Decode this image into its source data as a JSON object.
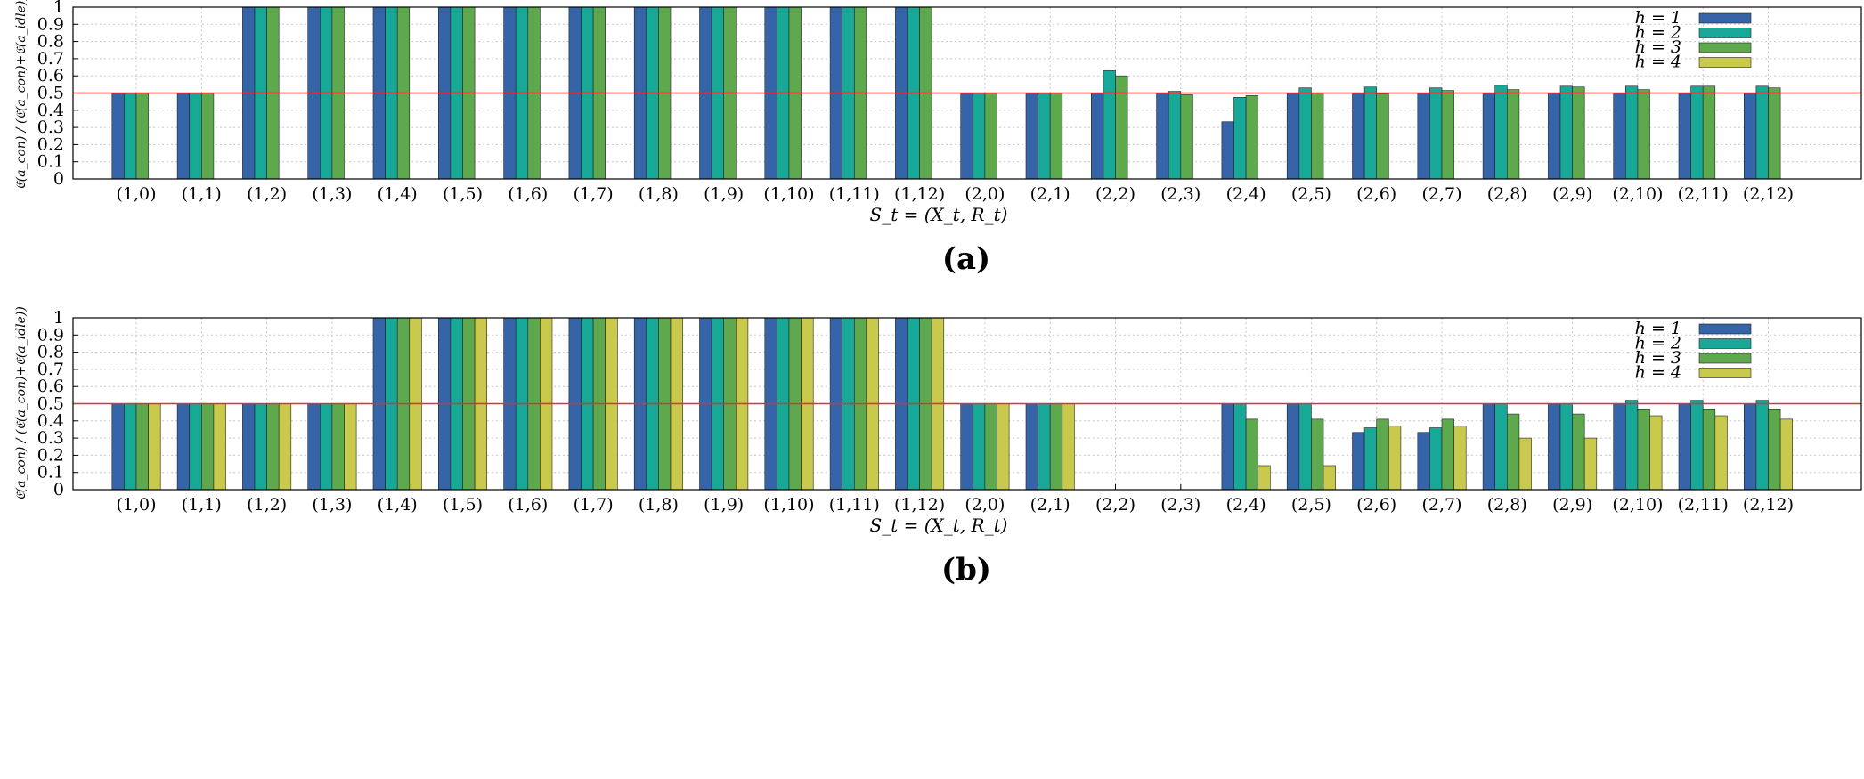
{
  "colors": {
    "h1": "#3565a8",
    "h2": "#18a898",
    "h3": "#5ea84e",
    "h4": "#c9c94e",
    "reference_line": "#e03030"
  },
  "chart_data": [
    {
      "type": "bar",
      "caption": "(a)",
      "xlabel": "S_t = (X_t, R_t)",
      "ylabel": "𝔈(a_con) / (𝔈(a_con)+𝔈(a_idle))",
      "ylim": [
        0,
        1
      ],
      "yticks": [
        "0",
        "0.1",
        "0.2",
        "0.3",
        "0.4",
        "0.5",
        "0.6",
        "0.7",
        "0.8",
        "0.9",
        "1"
      ],
      "reference_line": 0.5,
      "grid": true,
      "legend_position": "top-right",
      "categories": [
        "(1,0)",
        "(1,1)",
        "(1,2)",
        "(1,3)",
        "(1,4)",
        "(1,5)",
        "(1,6)",
        "(1,7)",
        "(1,8)",
        "(1,9)",
        "(1,10)",
        "(1,11)",
        "(1,12)",
        "(2,0)",
        "(2,1)",
        "(2,2)",
        "(2,3)",
        "(2,4)",
        "(2,5)",
        "(2,6)",
        "(2,7)",
        "(2,8)",
        "(2,9)",
        "(2,10)",
        "(2,11)",
        "(2,12)"
      ],
      "series": [
        {
          "name": "h = 1",
          "values": [
            0.5,
            0.5,
            1,
            1,
            1,
            1,
            1,
            1,
            1,
            1,
            1,
            1,
            1,
            0.5,
            0.5,
            0.5,
            0.5,
            0.333,
            0.5,
            0.5,
            0.5,
            0.5,
            0.5,
            0.5,
            0.5,
            0.5
          ]
        },
        {
          "name": "h = 2",
          "values": [
            0.5,
            0.5,
            1,
            1,
            1,
            1,
            1,
            1,
            1,
            1,
            1,
            1,
            1,
            0.5,
            0.5,
            0.63,
            0.51,
            0.475,
            0.53,
            0.535,
            0.53,
            0.545,
            0.54,
            0.54,
            0.54,
            0.54
          ]
        },
        {
          "name": "h = 3",
          "values": [
            0.5,
            0.5,
            1,
            1,
            1,
            1,
            1,
            1,
            1,
            1,
            1,
            1,
            1,
            0.5,
            0.5,
            0.6,
            0.49,
            0.485,
            0.5,
            0.495,
            0.515,
            0.52,
            0.535,
            0.52,
            0.54,
            0.53
          ]
        },
        {
          "name": "h = 4",
          "values": [
            0,
            0,
            0,
            0,
            0,
            0,
            0,
            0,
            0,
            0,
            0,
            0,
            0,
            0,
            0,
            0,
            0,
            0,
            0,
            0,
            0,
            0,
            0,
            0,
            0,
            0
          ]
        }
      ]
    },
    {
      "type": "bar",
      "caption": "(b)",
      "xlabel": "S_t = (X_t, R_t)",
      "ylabel": "𝔈(a_con) / (𝔈(a_con)+𝔈(a_idle))",
      "ylim": [
        0,
        1
      ],
      "yticks": [
        "0",
        "0.1",
        "0.2",
        "0.3",
        "0.4",
        "0.5",
        "0.6",
        "0.7",
        "0.8",
        "0.9",
        "1"
      ],
      "reference_line": 0.5,
      "grid": true,
      "legend_position": "top-right",
      "categories": [
        "(1,0)",
        "(1,1)",
        "(1,2)",
        "(1,3)",
        "(1,4)",
        "(1,5)",
        "(1,6)",
        "(1,7)",
        "(1,8)",
        "(1,9)",
        "(1,10)",
        "(1,11)",
        "(1,12)",
        "(2,0)",
        "(2,1)",
        "(2,2)",
        "(2,3)",
        "(2,4)",
        "(2,5)",
        "(2,6)",
        "(2,7)",
        "(2,8)",
        "(2,9)",
        "(2,10)",
        "(2,11)",
        "(2,12)"
      ],
      "series": [
        {
          "name": "h = 1",
          "values": [
            0.5,
            0.5,
            0.5,
            0.5,
            1,
            1,
            1,
            1,
            1,
            1,
            1,
            1,
            1,
            0.5,
            0.5,
            0,
            0,
            0.5,
            0.5,
            0.333,
            0.333,
            0.5,
            0.5,
            0.5,
            0.5,
            0.5
          ]
        },
        {
          "name": "h = 2",
          "values": [
            0.5,
            0.5,
            0.5,
            0.5,
            1,
            1,
            1,
            1,
            1,
            1,
            1,
            1,
            1,
            0.5,
            0.5,
            0,
            0,
            0.5,
            0.5,
            0.36,
            0.36,
            0.5,
            0.5,
            0.52,
            0.52,
            0.52
          ]
        },
        {
          "name": "h = 3",
          "values": [
            0.5,
            0.5,
            0.5,
            0.5,
            1,
            1,
            1,
            1,
            1,
            1,
            1,
            1,
            1,
            0.5,
            0.5,
            0,
            0,
            0.41,
            0.41,
            0.41,
            0.41,
            0.44,
            0.44,
            0.47,
            0.47,
            0.47
          ]
        },
        {
          "name": "h = 4",
          "values": [
            0.5,
            0.5,
            0.5,
            0.5,
            1,
            1,
            1,
            1,
            1,
            1,
            1,
            1,
            1,
            0.5,
            0.5,
            0,
            0,
            0.14,
            0.14,
            0.37,
            0.37,
            0.3,
            0.3,
            0.43,
            0.43,
            0.41
          ]
        }
      ]
    }
  ]
}
